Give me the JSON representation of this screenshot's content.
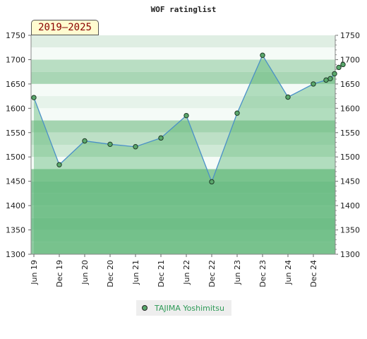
{
  "chart_data": {
    "type": "line",
    "title": "WOF ratinglist",
    "period_badge": "2019–2025",
    "x": [
      "Jun 19",
      "Dec 19",
      "Jun 20",
      "Dec 20",
      "Jun 21",
      "Dec 21",
      "Jun 22",
      "Dec 22",
      "Jun 23",
      "Dec 23",
      "Jun 24",
      "Dec 24",
      "Mar 25",
      "Apr 25",
      "May 25",
      "Jun 25",
      "Jul 25"
    ],
    "x_ticks": [
      "Jun 19",
      "Dec 19",
      "Jun 20",
      "Dec 20",
      "Jun 21",
      "Dec 21",
      "Jun 22",
      "Dec 22",
      "Jun 23",
      "Dec 23",
      "Jun 24",
      "Dec 24"
    ],
    "series": [
      {
        "name": "TAJIMA Yoshimitsu",
        "values": [
          1622,
          1484,
          1533,
          1526,
          1521,
          1539,
          1585,
          1449,
          1590,
          1709,
          1623,
          1650,
          1658,
          1661,
          1671,
          1684,
          1690
        ]
      }
    ],
    "ylim": [
      1300,
      1750
    ],
    "y_ticks": [
      "1300",
      "1350",
      "1400",
      "1450",
      "1500",
      "1550",
      "1600",
      "1650",
      "1700",
      "1750"
    ],
    "grid": true,
    "legend_position": "bottom-center",
    "colors": {
      "line": "#4a90c8",
      "area": "#5fb877",
      "marker": "#5aa86c",
      "band_dark": "#7cc494",
      "band_light": "#f5fbf7"
    }
  }
}
